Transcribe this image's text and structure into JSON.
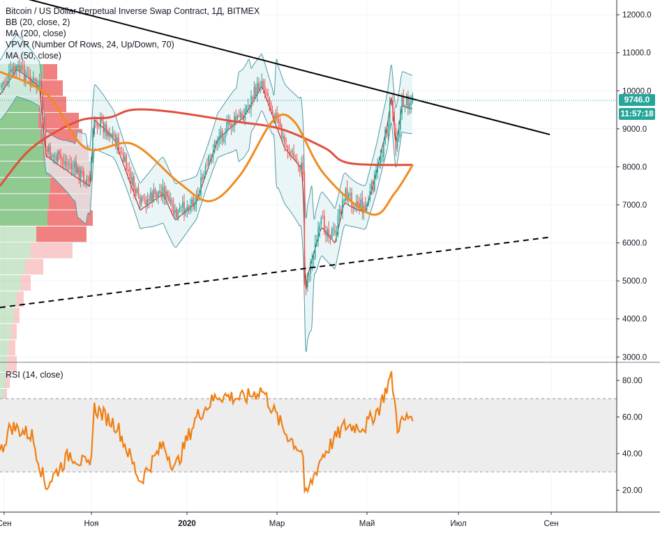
{
  "legend": {
    "title": "Bitcoin / US Dollar Perpetual Inverse Swap Contract, 1Д, BITMEX",
    "bb": "BB (20, close, 2)",
    "ma200": "MA (200, close)",
    "vpvr": "VPVR (Number Of Rows, 24, Up/Down, 70)",
    "ma50": "MA (50, close)",
    "rsi": "RSI (14, close)"
  },
  "badges": {
    "last_price": "9746.0",
    "countdown": "11:57:18"
  },
  "colors": {
    "candle_up": "#26a69a",
    "candle_down": "#ef5350",
    "ma200": "#e04f3e",
    "ma50": "#f08c20",
    "bb": "#4f9aa3",
    "bb_fill": "#e3f2f4",
    "rsi": "#f07f12",
    "vp_up": "#7cc17c",
    "vp_down": "#ef6a6a"
  },
  "chart_data": [
    {
      "type": "line",
      "title": "Bitcoin / US Dollar Perpetual Inverse Swap Contract, 1Д, BITMEX",
      "x_ticks": [
        "Сен",
        "Ноя",
        "2020",
        "Мар",
        "Май",
        "Июл",
        "Сен"
      ],
      "y_ticks": [
        "12000.0",
        "11000.0",
        "10000.0",
        "9000.0",
        "8000.0",
        "7000.0",
        "6000.0",
        "5000.0",
        "4000.0",
        "3000.0"
      ],
      "ylim": [
        2800,
        12300
      ],
      "last_price": 9746.0,
      "close_keypoints": [
        {
          "x": "2019-08-25",
          "y": 10100
        },
        {
          "x": "2019-09-05",
          "y": 10600
        },
        {
          "x": "2019-09-20",
          "y": 10100
        },
        {
          "x": "2019-09-24",
          "y": 8400
        },
        {
          "x": "2019-10-08",
          "y": 8100
        },
        {
          "x": "2019-10-23",
          "y": 7600
        },
        {
          "x": "2019-10-26",
          "y": 9300
        },
        {
          "x": "2019-11-08",
          "y": 8800
        },
        {
          "x": "2019-11-25",
          "y": 7000
        },
        {
          "x": "2019-12-10",
          "y": 7400
        },
        {
          "x": "2019-12-18",
          "y": 6700
        },
        {
          "x": "2020-01-01",
          "y": 7200
        },
        {
          "x": "2020-01-15",
          "y": 8800
        },
        {
          "x": "2020-02-01",
          "y": 9400
        },
        {
          "x": "2020-02-13",
          "y": 10300
        },
        {
          "x": "2020-02-28",
          "y": 8600
        },
        {
          "x": "2020-03-11",
          "y": 7900
        },
        {
          "x": "2020-03-12",
          "y": 4800
        },
        {
          "x": "2020-03-15",
          "y": 5300
        },
        {
          "x": "2020-03-23",
          "y": 6500
        },
        {
          "x": "2020-04-01",
          "y": 6200
        },
        {
          "x": "2020-04-07",
          "y": 7300
        },
        {
          "x": "2020-04-21",
          "y": 6900
        },
        {
          "x": "2020-04-28",
          "y": 7800
        },
        {
          "x": "2020-05-05",
          "y": 9000
        },
        {
          "x": "2020-05-08",
          "y": 9800
        },
        {
          "x": "2020-05-11",
          "y": 8600
        },
        {
          "x": "2020-05-15",
          "y": 9700
        },
        {
          "x": "2020-05-22",
          "y": 9746
        }
      ],
      "series": [
        {
          "name": "MA (200, close)",
          "values": [
            {
              "x": "2019-08-25",
              "y": 7500
            },
            {
              "x": "2019-09-15",
              "y": 8500
            },
            {
              "x": "2019-10-15",
              "y": 9200
            },
            {
              "x": "2019-11-05",
              "y": 9300
            },
            {
              "x": "2019-11-20",
              "y": 9500
            },
            {
              "x": "2019-12-15",
              "y": 9450
            },
            {
              "x": "2020-01-25",
              "y": 9200
            },
            {
              "x": "2020-02-25",
              "y": 9000
            },
            {
              "x": "2020-03-25",
              "y": 8500
            },
            {
              "x": "2020-04-10",
              "y": 8100
            },
            {
              "x": "2020-05-22",
              "y": 8050
            }
          ]
        },
        {
          "name": "MA (50, close)",
          "values": [
            {
              "x": "2019-08-25",
              "y": 10500
            },
            {
              "x": "2019-09-25",
              "y": 9900
            },
            {
              "x": "2019-10-20",
              "y": 8500
            },
            {
              "x": "2019-11-20",
              "y": 8600
            },
            {
              "x": "2019-12-20",
              "y": 7600
            },
            {
              "x": "2020-01-10",
              "y": 7100
            },
            {
              "x": "2020-01-30",
              "y": 7800
            },
            {
              "x": "2020-02-20",
              "y": 9200
            },
            {
              "x": "2020-03-05",
              "y": 9200
            },
            {
              "x": "2020-03-25",
              "y": 7800
            },
            {
              "x": "2020-04-25",
              "y": 6750
            },
            {
              "x": "2020-05-10",
              "y": 7300
            },
            {
              "x": "2020-05-22",
              "y": 8050
            }
          ]
        }
      ],
      "trendlines": [
        {
          "style": "solid",
          "color": "#000000",
          "points": [
            {
              "x": "2019-08-25",
              "y": 12600
            },
            {
              "x": "2020-08-20",
              "y": 8850
            }
          ]
        },
        {
          "style": "dashed",
          "color": "#000000",
          "points": [
            {
              "x": "2019-08-25",
              "y": 4300
            },
            {
              "x": "2020-08-20",
              "y": 6150
            }
          ]
        }
      ]
    },
    {
      "type": "line",
      "title": "RSI (14, close)",
      "y_ticks": [
        "80.00",
        "60.00",
        "40.00",
        "20.00"
      ],
      "ylim": [
        10,
        87
      ],
      "band": [
        30,
        70
      ],
      "series": [
        {
          "name": "RSI (14, close)",
          "values": [
            {
              "x": "2019-08-25",
              "y": 40
            },
            {
              "x": "2019-09-01",
              "y": 55
            },
            {
              "x": "2019-09-15",
              "y": 50
            },
            {
              "x": "2019-09-24",
              "y": 22
            },
            {
              "x": "2019-10-10",
              "y": 40
            },
            {
              "x": "2019-10-23",
              "y": 32
            },
            {
              "x": "2019-10-26",
              "y": 65
            },
            {
              "x": "2019-11-10",
              "y": 55
            },
            {
              "x": "2019-11-25",
              "y": 25
            },
            {
              "x": "2019-12-10",
              "y": 45
            },
            {
              "x": "2019-12-18",
              "y": 32
            },
            {
              "x": "2020-01-01",
              "y": 60
            },
            {
              "x": "2020-01-15",
              "y": 72
            },
            {
              "x": "2020-02-01",
              "y": 70
            },
            {
              "x": "2020-02-13",
              "y": 75
            },
            {
              "x": "2020-02-28",
              "y": 52
            },
            {
              "x": "2020-03-11",
              "y": 40
            },
            {
              "x": "2020-03-12",
              "y": 15
            },
            {
              "x": "2020-03-23",
              "y": 38
            },
            {
              "x": "2020-04-07",
              "y": 55
            },
            {
              "x": "2020-04-21",
              "y": 55
            },
            {
              "x": "2020-04-30",
              "y": 65
            },
            {
              "x": "2020-05-08",
              "y": 83
            },
            {
              "x": "2020-05-12",
              "y": 55
            },
            {
              "x": "2020-05-22",
              "y": 62
            }
          ]
        }
      ]
    }
  ]
}
